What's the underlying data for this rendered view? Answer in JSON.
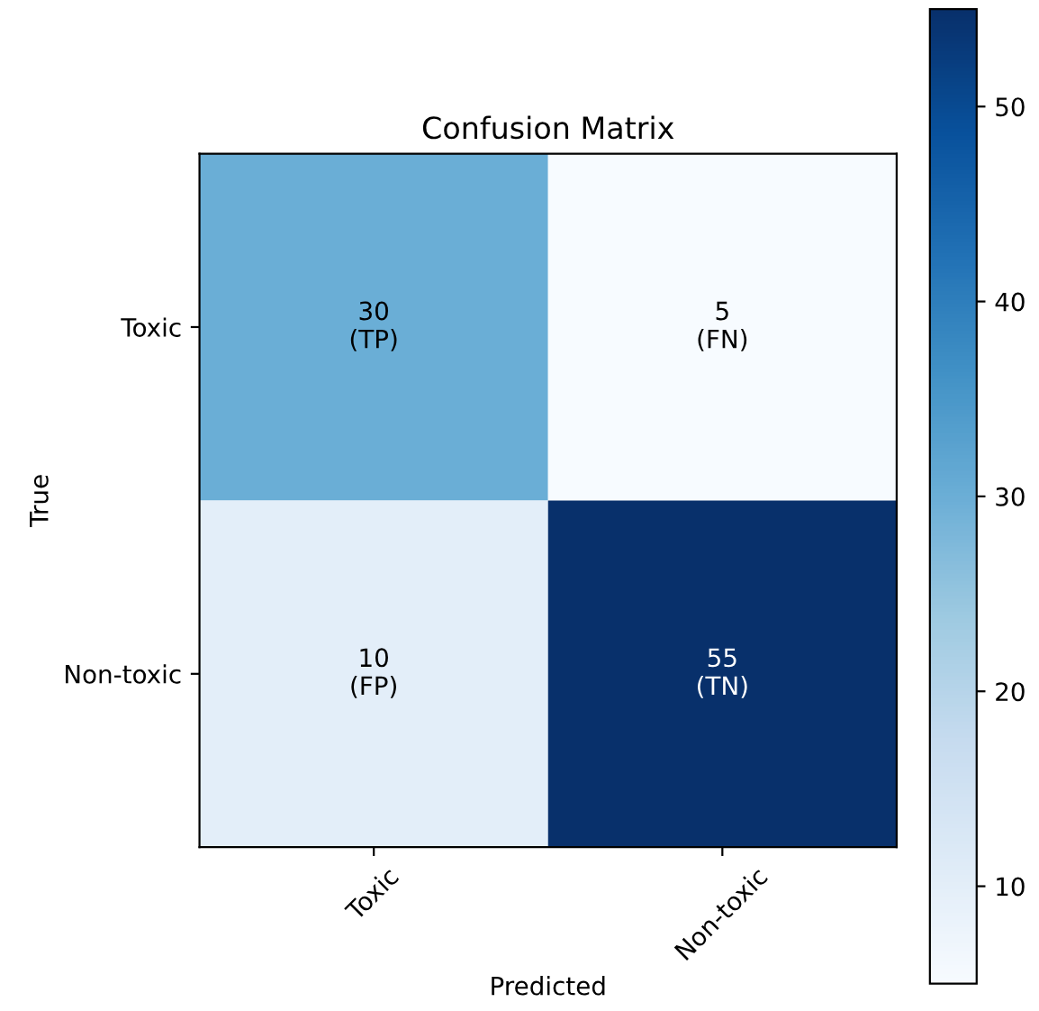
{
  "chart_data": {
    "type": "heatmap",
    "title": "Confusion Matrix",
    "xlabel": "Predicted",
    "ylabel": "True",
    "categories": [
      "Toxic",
      "Non-toxic"
    ],
    "y_categories": [
      "Toxic",
      "Non-toxic"
    ],
    "cells": [
      [
        30,
        5
      ],
      [
        10,
        55
      ]
    ],
    "cell_labels": [
      [
        "30\n(TP)",
        "5\n(FN)"
      ],
      [
        "10\n(FP)",
        "55\n(TN)"
      ]
    ],
    "clim": [
      5,
      55
    ],
    "cticks": [
      10,
      20,
      30,
      40,
      50
    ],
    "grid": false
  }
}
